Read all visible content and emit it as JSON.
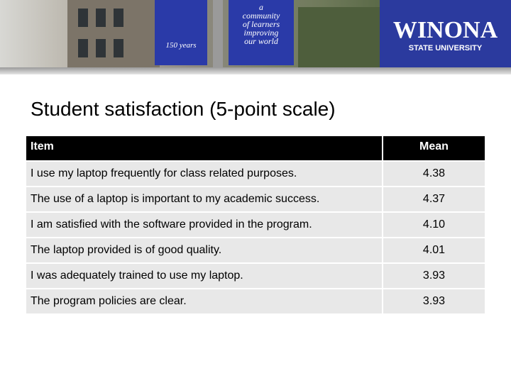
{
  "header": {
    "logo": "WINONA",
    "logo_sub": "STATE UNIVERSITY",
    "banner_left": "150 years",
    "banner_right": "a community of learners improving our world"
  },
  "title": "Student satisfaction (5-point scale)",
  "table": {
    "columns": [
      "Item",
      "Mean"
    ],
    "rows": [
      [
        "I use my laptop frequently for class related purposes.",
        "4.38"
      ],
      [
        "The use of a laptop is important to my academic success.",
        "4.37"
      ],
      [
        "I am satisfied with the software provided in the program.",
        "4.10"
      ],
      [
        "The laptop provided is of good quality.",
        "4.01"
      ],
      [
        "I was adequately trained to use my laptop.",
        "3.93"
      ],
      [
        "The program policies are clear.",
        "3.93"
      ]
    ]
  }
}
